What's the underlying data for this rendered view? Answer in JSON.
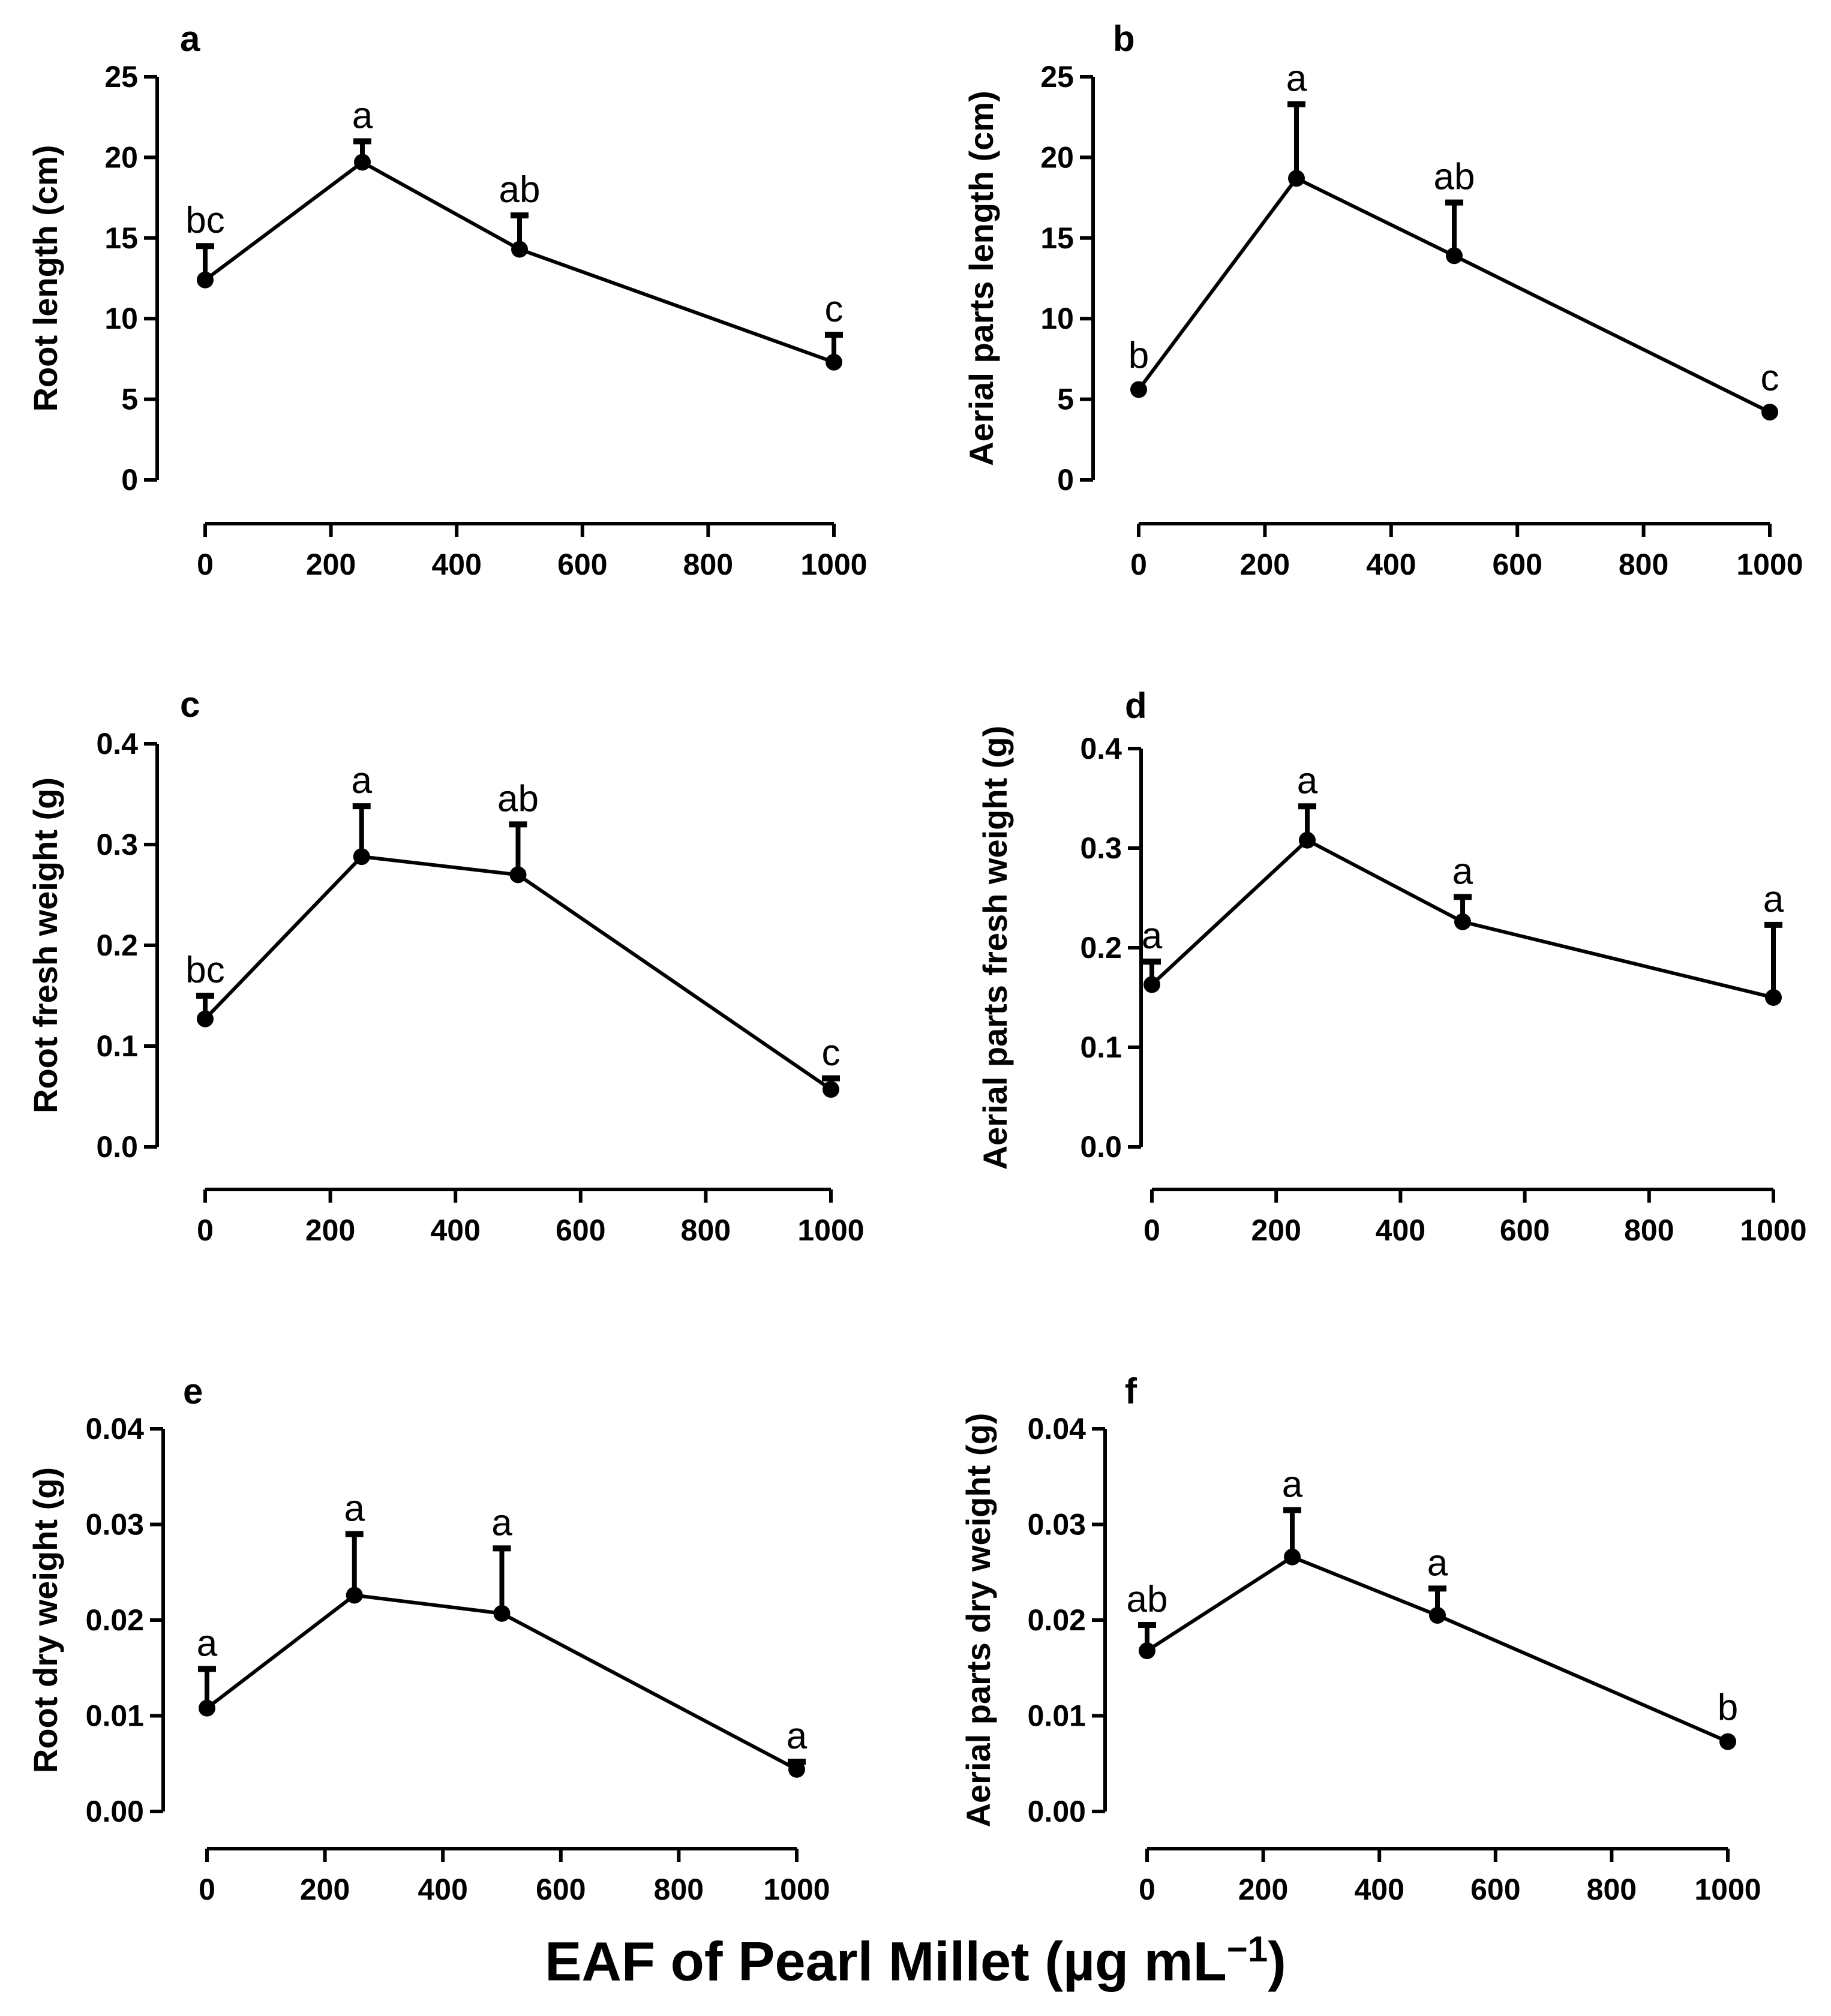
{
  "x_axis_label": {
    "prefix": "EAF of Pearl Millet (",
    "unit": "µg mL",
    "exponent": "−1",
    "suffix": ")"
  },
  "chart_data": [
    {
      "panel": "a",
      "type": "line",
      "ylabel": "Root length (cm)",
      "x": [
        0,
        250,
        500,
        1000
      ],
      "y": [
        12.4,
        19.7,
        14.3,
        7.3
      ],
      "error": [
        2.1,
        1.3,
        2.1,
        1.7
      ],
      "annotations": [
        "bc",
        "a",
        "ab",
        "c"
      ],
      "xlim": [
        0,
        1000
      ],
      "ylim": [
        0,
        25
      ],
      "xticks": [
        "0",
        "200",
        "400",
        "600",
        "800",
        "1000"
      ],
      "yticks": [
        "0",
        "5",
        "10",
        "15",
        "20",
        "25"
      ]
    },
    {
      "panel": "b",
      "type": "line",
      "ylabel": "Aerial parts length (cm)",
      "x": [
        0,
        250,
        500,
        1000
      ],
      "y": [
        5.6,
        18.7,
        13.9,
        4.2
      ],
      "error": [
        0,
        4.6,
        3.3,
        0
      ],
      "annotations": [
        "b",
        "a",
        "ab",
        "c"
      ],
      "xlim": [
        0,
        1000
      ],
      "ylim": [
        0,
        25
      ],
      "xticks": [
        "0",
        "200",
        "400",
        "600",
        "800",
        "1000"
      ],
      "yticks": [
        "0",
        "5",
        "10",
        "15",
        "20",
        "25"
      ]
    },
    {
      "panel": "c",
      "type": "line",
      "ylabel": "Root fresh weight (g)",
      "x": [
        0,
        250,
        500,
        1000
      ],
      "y": [
        0.127,
        0.288,
        0.27,
        0.057
      ],
      "error": [
        0.023,
        0.05,
        0.05,
        0.011
      ],
      "annotations": [
        "bc",
        "a",
        "ab",
        "c"
      ],
      "xlim": [
        0,
        1000
      ],
      "ylim": [
        0,
        0.4
      ],
      "xticks": [
        "0",
        "200",
        "400",
        "600",
        "800",
        "1000"
      ],
      "yticks": [
        "0.0",
        "0.1",
        "0.2",
        "0.3",
        "0.4"
      ]
    },
    {
      "panel": "d",
      "type": "line",
      "ylabel": "Aerial parts fresh weight (g)",
      "x": [
        0,
        250,
        500,
        1000
      ],
      "y": [
        0.163,
        0.308,
        0.226,
        0.15
      ],
      "error": [
        0.023,
        0.034,
        0.025,
        0.073
      ],
      "annotations": [
        "a",
        "a",
        "a",
        "a"
      ],
      "xlim": [
        0,
        1000
      ],
      "ylim": [
        0,
        0.4
      ],
      "xticks": [
        "0",
        "200",
        "400",
        "600",
        "800",
        "1000"
      ],
      "yticks": [
        "0.0",
        "0.1",
        "0.2",
        "0.3",
        "0.4"
      ]
    },
    {
      "panel": "e",
      "type": "line",
      "ylabel": "Root dry weight (g)",
      "x": [
        0,
        250,
        500,
        1000
      ],
      "y": [
        0.0108,
        0.0226,
        0.0207,
        0.0044
      ],
      "error": [
        0.0041,
        0.0064,
        0.0068,
        0.0008
      ],
      "annotations": [
        "a",
        "a",
        "a",
        "a"
      ],
      "xlim": [
        0,
        1000
      ],
      "ylim": [
        0,
        0.04
      ],
      "xticks": [
        "0",
        "200",
        "400",
        "600",
        "800",
        "1000"
      ],
      "yticks": [
        "0.00",
        "0.01",
        "0.02",
        "0.03",
        "0.04"
      ]
    },
    {
      "panel": "f",
      "type": "line",
      "ylabel": "Aerial parts dry weight (g)",
      "x": [
        0,
        250,
        500,
        1000
      ],
      "y": [
        0.0168,
        0.0266,
        0.0205,
        0.0073
      ],
      "error": [
        0.0027,
        0.0049,
        0.0028,
        0
      ],
      "annotations": [
        "ab",
        "a",
        "a",
        "b"
      ],
      "xlim": [
        0,
        1000
      ],
      "ylim": [
        0,
        0.04
      ],
      "xticks": [
        "0",
        "200",
        "400",
        "600",
        "800",
        "1000"
      ],
      "yticks": [
        "0.00",
        "0.01",
        "0.02",
        "0.03",
        "0.04"
      ]
    }
  ]
}
